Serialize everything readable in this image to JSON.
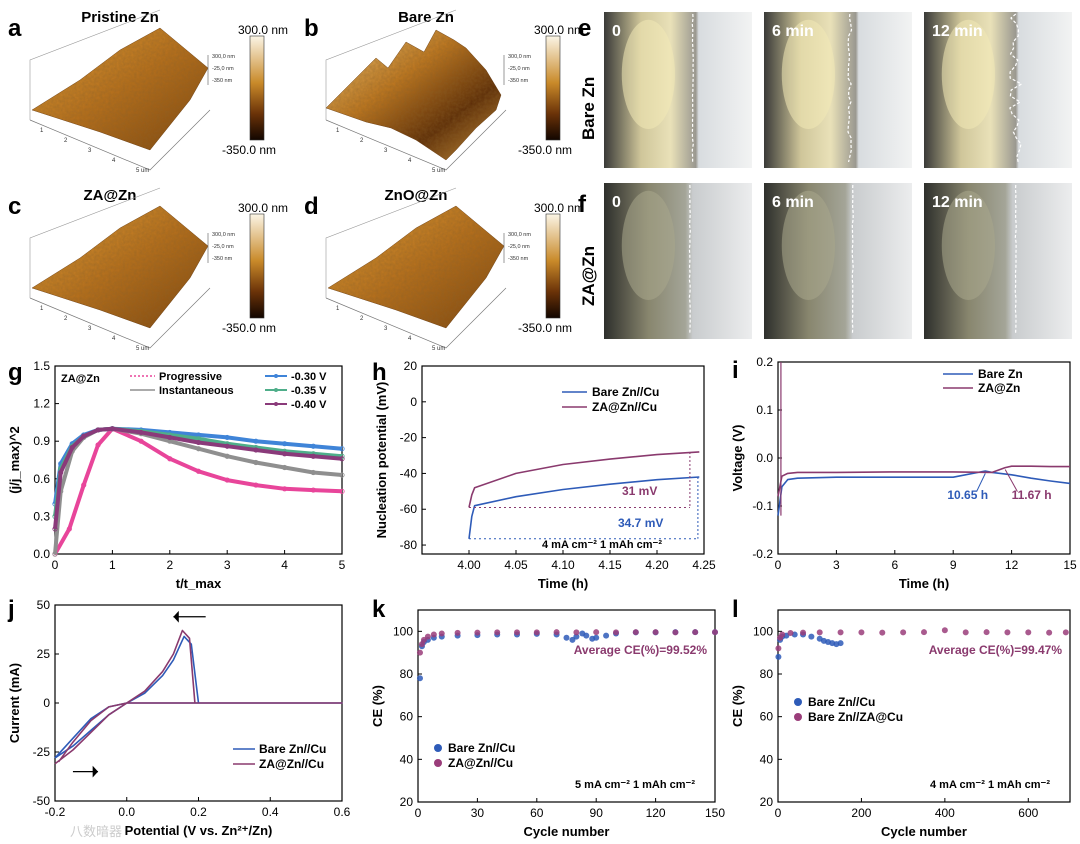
{
  "panel_letters": {
    "a": "a",
    "b": "b",
    "c": "c",
    "d": "d",
    "e": "e",
    "f": "f",
    "g": "g",
    "h": "h",
    "i": "i",
    "j": "j",
    "k": "k",
    "l": "l"
  },
  "afm": {
    "a": {
      "title": "Pristine Zn"
    },
    "b": {
      "title": "Bare Zn"
    },
    "c": {
      "title": "ZA@Zn"
    },
    "d": {
      "title": "ZnO@Zn"
    },
    "scale_top": "300.0 nm",
    "scale_bottom": "-350.0 nm",
    "mini_ticks": [
      "300,0 nm",
      "-25,0 nm",
      "-350 nm",
      "5 um"
    ],
    "axis_ticks": [
      "1",
      "2",
      "3",
      "4",
      "5 um"
    ],
    "colors": {
      "low": "#1a0a02",
      "mid": "#8a4a10",
      "high": "#f6e7c2"
    }
  },
  "insitu": {
    "e_label": "Bare Zn",
    "f_label": "ZA@Zn",
    "times": [
      "0",
      "6 min",
      "12 min"
    ]
  },
  "watermark": "八数暗器",
  "chart_data": [
    {
      "id": "g",
      "type": "line",
      "title": "ZA@Zn",
      "xlabel": "t/t_max",
      "ylabel": "(j/j_max)^2",
      "xlim": [
        0,
        5
      ],
      "ylim": [
        0,
        1.5
      ],
      "xticks": [
        "0",
        "1",
        "2",
        "3",
        "4",
        "5"
      ],
      "yticks": [
        "0.0",
        "0.3",
        "0.6",
        "0.9",
        "1.2",
        "1.5"
      ],
      "legend_left": [
        "Progressive",
        "Instantaneous"
      ],
      "legend_right": [
        "-0.30 V",
        "-0.35 V",
        "-0.40 V"
      ],
      "series": [
        {
          "name": "Progressive",
          "color": "#e8459a",
          "x": [
            0,
            0.25,
            0.5,
            0.75,
            1,
            1.5,
            2,
            2.5,
            3,
            3.5,
            4,
            4.5,
            5
          ],
          "values": [
            0,
            0.2,
            0.55,
            0.87,
            1.0,
            0.9,
            0.76,
            0.66,
            0.59,
            0.55,
            0.52,
            0.51,
            0.5
          ]
        },
        {
          "name": "Instantaneous",
          "color": "#8f8f8f",
          "x": [
            0,
            0.1,
            0.3,
            0.5,
            0.75,
            1,
            1.5,
            2,
            2.5,
            3,
            3.5,
            4,
            4.5,
            5
          ],
          "values": [
            0,
            0.5,
            0.82,
            0.93,
            0.99,
            1.0,
            0.96,
            0.9,
            0.84,
            0.78,
            0.73,
            0.69,
            0.65,
            0.63
          ]
        },
        {
          "name": "-0.30 V",
          "color": "#3f84d8",
          "x": [
            0,
            0.1,
            0.3,
            0.5,
            0.75,
            1,
            1.5,
            2,
            2.5,
            3,
            3.5,
            4,
            4.5,
            5
          ],
          "values": [
            0.4,
            0.72,
            0.88,
            0.95,
            0.99,
            1.0,
            0.99,
            0.97,
            0.95,
            0.93,
            0.9,
            0.88,
            0.86,
            0.84
          ]
        },
        {
          "name": "-0.35 V",
          "color": "#4fae8a",
          "x": [
            0,
            0.1,
            0.3,
            0.5,
            0.75,
            1,
            1.5,
            2,
            2.5,
            3,
            3.5,
            4,
            4.5,
            5
          ],
          "values": [
            0.3,
            0.68,
            0.86,
            0.94,
            0.99,
            1.0,
            0.98,
            0.95,
            0.92,
            0.88,
            0.85,
            0.82,
            0.8,
            0.78
          ]
        },
        {
          "name": "-0.40 V",
          "color": "#8a3a7a",
          "x": [
            0,
            0.1,
            0.3,
            0.5,
            0.75,
            1,
            1.5,
            2,
            2.5,
            3,
            3.5,
            4,
            4.5,
            5
          ],
          "values": [
            0.2,
            0.65,
            0.85,
            0.94,
            0.99,
            1.0,
            0.97,
            0.93,
            0.89,
            0.86,
            0.83,
            0.8,
            0.78,
            0.76
          ]
        }
      ]
    },
    {
      "id": "h",
      "type": "line",
      "xlabel": "Time (h)",
      "ylabel": "Nucleation potential (mV)",
      "xlim": [
        3.95,
        4.25
      ],
      "ylim": [
        -85,
        20
      ],
      "xticks": [
        "4.00",
        "4.05",
        "4.10",
        "4.15",
        "4.20",
        "4.25"
      ],
      "yticks": [
        "-80",
        "-60",
        "-40",
        "-20",
        "0",
        "20"
      ],
      "legend": [
        "Bare Zn//Cu",
        "ZA@Zn//Cu"
      ],
      "annotations": [
        "31 mV",
        "34.7 mV",
        "4 mA cm⁻²   1 mAh cm⁻²"
      ],
      "series": [
        {
          "name": "Bare Zn//Cu",
          "color": "#2e5bb8",
          "x": [
            4.0,
            4.003,
            4.006,
            4.05,
            4.1,
            4.15,
            4.2,
            4.245
          ],
          "values": [
            -76.5,
            -64,
            -58,
            -53,
            -49,
            -46,
            -43.5,
            -42
          ]
        },
        {
          "name": "ZA@Zn//Cu",
          "color": "#8a3a6e",
          "x": [
            4.0,
            4.003,
            4.006,
            4.05,
            4.1,
            4.15,
            4.2,
            4.245
          ],
          "values": [
            -59,
            -52,
            -48,
            -40,
            -35,
            -32,
            -29.5,
            -28
          ]
        }
      ]
    },
    {
      "id": "i",
      "type": "line",
      "xlabel": "Time (h)",
      "ylabel": "Voltage (V)",
      "xlim": [
        0,
        15
      ],
      "ylim": [
        -0.2,
        0.2
      ],
      "xticks": [
        "0",
        "3",
        "6",
        "9",
        "12",
        "15"
      ],
      "yticks": [
        "-0.2",
        "-0.1",
        "0.0",
        "0.1",
        "0.2"
      ],
      "legend": [
        "Bare Zn",
        "ZA@Zn"
      ],
      "annotations": [
        "10.65 h",
        "11.67 h"
      ],
      "series": [
        {
          "name": "Bare Zn",
          "color": "#2e5bb8",
          "x": [
            0,
            0.2,
            0.5,
            1,
            3,
            6,
            9,
            10.65,
            11,
            12,
            13,
            14,
            15
          ],
          "values": [
            -0.12,
            -0.06,
            -0.045,
            -0.042,
            -0.04,
            -0.04,
            -0.04,
            -0.027,
            -0.03,
            -0.035,
            -0.042,
            -0.048,
            -0.053
          ]
        },
        {
          "name": "ZA@Zn",
          "color": "#8a3a6e",
          "x": [
            0,
            0.2,
            0.5,
            1,
            3,
            6,
            9,
            11,
            11.67,
            12,
            13,
            14,
            15
          ],
          "values": [
            -0.08,
            -0.038,
            -0.032,
            -0.03,
            -0.03,
            -0.029,
            -0.029,
            -0.03,
            -0.02,
            -0.017,
            -0.017,
            -0.018,
            -0.018
          ]
        }
      ]
    },
    {
      "id": "j",
      "type": "line",
      "xlabel": "Potential (V vs. Zn²⁺/Zn)",
      "ylabel": "Current (mA)",
      "xlim": [
        -0.2,
        0.6
      ],
      "ylim": [
        -50,
        50
      ],
      "xticks": [
        "-0.2",
        "0.0",
        "0.2",
        "0.4",
        "0.6"
      ],
      "yticks": [
        "-50",
        "-25",
        "0",
        "25",
        "50"
      ],
      "legend": [
        "Bare Zn//Cu",
        "ZA@Zn//Cu"
      ],
      "series": [
        {
          "name": "Bare Zn//Cu",
          "color": "#2e5bb8",
          "x": [
            -0.2,
            -0.15,
            -0.1,
            -0.05,
            0,
            0.05,
            0.1,
            0.13,
            0.16,
            0.18,
            0.2,
            0.3,
            0.6,
            0.3,
            0.1,
            0,
            -0.05,
            -0.1,
            -0.15,
            -0.2
          ],
          "values": [
            -28,
            -22,
            -14,
            -6,
            0,
            5,
            14,
            22,
            34,
            30,
            0,
            0,
            0,
            0,
            0,
            0,
            -2,
            -8,
            -18,
            -28
          ]
        },
        {
          "name": "ZA@Zn//Cu",
          "color": "#8a3a6e",
          "x": [
            -0.2,
            -0.15,
            -0.1,
            -0.05,
            0,
            0.05,
            0.1,
            0.13,
            0.155,
            0.175,
            0.19,
            0.3,
            0.6,
            0.3,
            0.1,
            0,
            -0.05,
            -0.1,
            -0.15,
            -0.19
          ],
          "values": [
            -31,
            -24,
            -15,
            -6,
            0,
            6,
            16,
            25,
            37,
            33,
            0,
            0,
            0,
            0,
            0,
            0,
            -2,
            -9,
            -20,
            -30
          ]
        }
      ]
    },
    {
      "id": "k",
      "type": "scatter",
      "xlabel": "Cycle number",
      "ylabel": "CE (%)",
      "xlim": [
        0,
        150
      ],
      "ylim": [
        20,
        110
      ],
      "xticks": [
        "0",
        "30",
        "60",
        "90",
        "120",
        "150"
      ],
      "yticks": [
        "20",
        "40",
        "60",
        "80",
        "100"
      ],
      "legend": [
        "Bare Zn//Cu",
        "ZA@Zn//Cu"
      ],
      "annotations": [
        "Average CE(%)=99.52%",
        "5 mA cm⁻²   1 mAh cm⁻²"
      ],
      "series": [
        {
          "name": "Bare Zn//Cu",
          "color": "#2e5bb8",
          "x": [
            1,
            2,
            3,
            5,
            8,
            12,
            20,
            30,
            40,
            50,
            60,
            70,
            75,
            78,
            80,
            83,
            85,
            88,
            90,
            95,
            100,
            110,
            120,
            130,
            140,
            150
          ],
          "values": [
            78,
            93,
            95,
            96,
            97,
            97.5,
            98,
            98.2,
            98.5,
            98.5,
            98.8,
            98.5,
            97,
            96,
            97.5,
            99,
            98,
            96.5,
            97,
            98,
            99,
            99.5,
            99.5,
            99.6,
            99.6,
            99.6
          ]
        },
        {
          "name": "ZA@Zn//Cu",
          "color": "#9a3d7a",
          "x": [
            1,
            2,
            3,
            5,
            8,
            12,
            20,
            30,
            40,
            50,
            60,
            70,
            80,
            90,
            100,
            110,
            120,
            130,
            140,
            150
          ],
          "values": [
            90,
            94,
            96,
            97.5,
            98.5,
            99,
            99.3,
            99.4,
            99.5,
            99.5,
            99.5,
            99.6,
            99.5,
            99.6,
            99.5,
            99.6,
            99.6,
            99.5,
            99.6,
            99.6
          ]
        }
      ]
    },
    {
      "id": "l",
      "type": "scatter",
      "xlabel": "Cycle number",
      "ylabel": "CE (%)",
      "xlim": [
        0,
        700
      ],
      "ylim": [
        20,
        110
      ],
      "xticks": [
        "0",
        "200",
        "400",
        "600"
      ],
      "yticks": [
        "20",
        "40",
        "60",
        "80",
        "100"
      ],
      "legend": [
        "Bare Zn//Cu",
        "Bare Zn//ZA@Cu"
      ],
      "annotations": [
        "Average CE(%)=99.47%",
        "4 mA cm⁻²   1 mAh cm⁻²"
      ],
      "series": [
        {
          "name": "Bare Zn//Cu",
          "color": "#2e5bb8",
          "x": [
            1,
            5,
            10,
            20,
            40,
            60,
            80,
            100,
            110,
            120,
            130,
            140,
            150
          ],
          "values": [
            88,
            96,
            97.5,
            98,
            98.5,
            98.5,
            97.5,
            96.5,
            95.5,
            95,
            94.5,
            94,
            94.5
          ]
        },
        {
          "name": "Bare Zn//ZA@Cu",
          "color": "#9a3d7a",
          "x": [
            1,
            5,
            10,
            30,
            60,
            100,
            150,
            200,
            250,
            300,
            350,
            400,
            450,
            500,
            550,
            600,
            650,
            690
          ],
          "values": [
            92,
            97,
            98.5,
            99.2,
            99.4,
            99.5,
            99.5,
            99.5,
            99.4,
            99.5,
            99.6,
            100.5,
            99.5,
            99.6,
            99.5,
            99.5,
            99.4,
            99.5
          ]
        }
      ]
    }
  ]
}
